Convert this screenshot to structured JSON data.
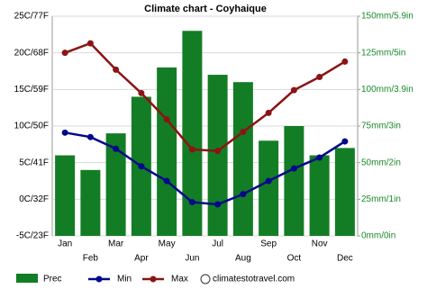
{
  "chart_data": {
    "type": "climate",
    "title": "Climate chart - Coyhaique",
    "categories": [
      "Jan",
      "Feb",
      "Mar",
      "Apr",
      "May",
      "Jun",
      "Jul",
      "Aug",
      "Sep",
      "Oct",
      "Nov",
      "Dec"
    ],
    "series": [
      {
        "name": "Prec",
        "color": "#137d25",
        "axis": "y2",
        "kind": "bar",
        "values": [
          55,
          45,
          70,
          95,
          115,
          140,
          110,
          105,
          65,
          75,
          55,
          60
        ]
      },
      {
        "name": "Min",
        "color": "#00088b",
        "kind": "line",
        "values": [
          9.1,
          8.5,
          6.9,
          4.5,
          2.5,
          -0.4,
          -0.7,
          0.7,
          2.5,
          4.2,
          5.7,
          7.9
        ]
      },
      {
        "name": "Max",
        "color": "#8b1414",
        "kind": "line",
        "values": [
          20.0,
          21.3,
          17.7,
          14.5,
          10.9,
          6.8,
          6.6,
          9.2,
          11.8,
          14.9,
          16.7,
          18.8
        ]
      }
    ],
    "ylim": [
      -5,
      25
    ],
    "yticks": [
      {
        "value": -5,
        "label": "-5C/23F"
      },
      {
        "value": 0,
        "label": "0C/32F"
      },
      {
        "value": 5,
        "label": "5C/41F"
      },
      {
        "value": 10,
        "label": "10C/50F"
      },
      {
        "value": 15,
        "label": "15C/59F"
      },
      {
        "value": 20,
        "label": "20C/68F"
      },
      {
        "value": 25,
        "label": "25C/77F"
      }
    ],
    "y2lim": [
      0,
      150
    ],
    "y2ticks": [
      {
        "value": 0,
        "label": "0mm/0in"
      },
      {
        "value": 25,
        "label": "25mm/1in"
      },
      {
        "value": 50,
        "label": "50mm/2in"
      },
      {
        "value": 75,
        "label": "75mm/3in"
      },
      {
        "value": 100,
        "label": "100mm/3.9in"
      },
      {
        "value": 125,
        "label": "125mm/5in"
      },
      {
        "value": 150,
        "label": "150mm/5.9in"
      }
    ],
    "grid": true,
    "source": "climatestotravel.com"
  }
}
